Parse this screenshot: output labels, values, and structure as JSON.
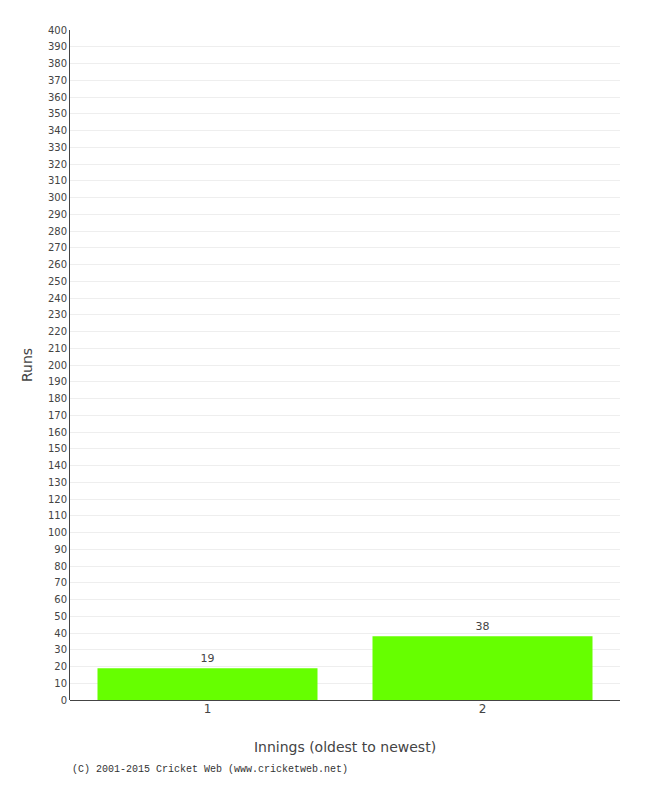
{
  "chart_data": {
    "type": "bar",
    "categories": [
      "1",
      "2"
    ],
    "values": [
      19,
      38
    ],
    "color": "#66ff00",
    "xlabel": "Innings (oldest to newest)",
    "ylabel": "Runs",
    "ylim": [
      0,
      400
    ],
    "yticks": [
      0,
      10,
      20,
      30,
      40,
      50,
      60,
      70,
      80,
      90,
      100,
      110,
      120,
      130,
      140,
      150,
      160,
      170,
      180,
      190,
      200,
      210,
      220,
      230,
      240,
      250,
      260,
      270,
      280,
      290,
      300,
      310,
      320,
      330,
      340,
      350,
      360,
      370,
      380,
      390,
      400
    ],
    "grid": true,
    "data_labels": true,
    "annotations": [
      "(C) 2001-2015 Cricket Web (www.cricketweb.net)"
    ]
  }
}
